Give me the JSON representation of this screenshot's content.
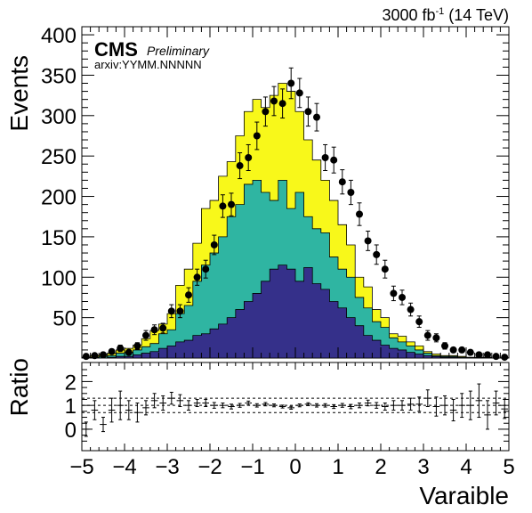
{
  "header": {
    "lumi_main": "3000 fb",
    "lumi_exp": "-1",
    "lumi_energy": " (14 TeV)"
  },
  "cms_label": {
    "cms": "CMS",
    "preliminary": "Preliminary",
    "arxiv": "arxiv:YYMM.NNNNN"
  },
  "chart_data": [
    {
      "type": "area",
      "subtype": "stacked_histogram_with_data_points",
      "xlim": [
        -5,
        5
      ],
      "ylim": [
        0,
        410
      ],
      "ylabel": "Events",
      "y_ticks": [
        50,
        100,
        150,
        200,
        250,
        300,
        350,
        400
      ],
      "bin_edges_start": -5,
      "bin_width": 0.2,
      "colors": {
        "bottom": "#35308a",
        "middle": "#2fb5a2",
        "top": "#f8f81a",
        "data": "#000000"
      },
      "stack_bottom": [
        0,
        0,
        0,
        1,
        2,
        2,
        4,
        6,
        8,
        12,
        15,
        20,
        22,
        28,
        30,
        36,
        42,
        50,
        60,
        70,
        80,
        95,
        110,
        115,
        110,
        95,
        112,
        92,
        85,
        70,
        62,
        50,
        40,
        28,
        22,
        16,
        12,
        10,
        7,
        5,
        3,
        2,
        1,
        1,
        0,
        0,
        0,
        0,
        0,
        0
      ],
      "stack_middle_cumulative": [
        0,
        1,
        2,
        3,
        6,
        7,
        10,
        14,
        18,
        30,
        35,
        55,
        65,
        95,
        115,
        130,
        150,
        175,
        190,
        215,
        220,
        205,
        195,
        220,
        185,
        205,
        175,
        160,
        155,
        125,
        110,
        100,
        75,
        62,
        45,
        38,
        25,
        20,
        15,
        10,
        6,
        3,
        2,
        2,
        1,
        0,
        0,
        0,
        0,
        0
      ],
      "stack_top_cumulative": [
        1,
        3,
        4,
        6,
        10,
        12,
        16,
        24,
        34,
        42,
        55,
        90,
        110,
        142,
        185,
        195,
        225,
        243,
        275,
        305,
        320,
        310,
        325,
        340,
        330,
        305,
        270,
        245,
        220,
        195,
        165,
        140,
        100,
        88,
        60,
        50,
        30,
        27,
        20,
        15,
        8,
        5,
        3,
        3,
        2,
        1,
        1,
        1,
        0,
        0
      ],
      "data_values": [
        2,
        3,
        4,
        8,
        12,
        7,
        15,
        28,
        35,
        37,
        58,
        58,
        78,
        100,
        110,
        140,
        188,
        190,
        238,
        248,
        275,
        305,
        318,
        315,
        340,
        328,
        305,
        298,
        248,
        245,
        218,
        205,
        178,
        145,
        128,
        110,
        80,
        75,
        60,
        45,
        28,
        25,
        15,
        10,
        10,
        7,
        4,
        4,
        2,
        1
      ],
      "data_errors": [
        2,
        2,
        2,
        3,
        4,
        3,
        4,
        6,
        6,
        6,
        8,
        8,
        9,
        10,
        11,
        12,
        14,
        14,
        16,
        16,
        17,
        18,
        18,
        18,
        19,
        18,
        18,
        17,
        16,
        16,
        15,
        15,
        14,
        12,
        12,
        11,
        9,
        9,
        8,
        7,
        6,
        5,
        4,
        3,
        3,
        3,
        2,
        2,
        2,
        1
      ]
    },
    {
      "type": "scatter",
      "subtype": "ratio_panel",
      "xlim": [
        -5,
        5
      ],
      "ylim": [
        -0.9,
        2.8
      ],
      "xlabel": "Varaible",
      "ylabel": "Ratio",
      "x_ticks": [
        -5,
        -4,
        -3,
        -2,
        -1,
        0,
        1,
        2,
        3,
        4,
        5
      ],
      "y_ticks": [
        0,
        1,
        2
      ],
      "reference_lines": [
        1.3,
        1.0,
        0.7
      ],
      "ratio_values": [
        0,
        0.8,
        0.2,
        0.8,
        1.0,
        0.8,
        0.7,
        0.9,
        1.2,
        1.1,
        1.3,
        1.2,
        1.0,
        1.1,
        1.1,
        1.0,
        1.0,
        0.95,
        1.0,
        1.1,
        1.0,
        1.05,
        1.0,
        0.95,
        0.9,
        1.0,
        1.05,
        1.0,
        1.0,
        0.95,
        1.0,
        0.95,
        1.0,
        1.1,
        1.0,
        0.95,
        1.0,
        1.0,
        1.05,
        1.05,
        1.3,
        0.95,
        1.0,
        0.8,
        1.0,
        1.0,
        1.2,
        0.6,
        1.1,
        0.85
      ],
      "ratio_errors": [
        0.3,
        0.4,
        0.3,
        0.5,
        0.6,
        0.4,
        0.4,
        0.3,
        0.3,
        0.3,
        0.25,
        0.25,
        0.2,
        0.15,
        0.15,
        0.12,
        0.1,
        0.1,
        0.08,
        0.08,
        0.07,
        0.07,
        0.06,
        0.06,
        0.06,
        0.06,
        0.06,
        0.07,
        0.07,
        0.08,
        0.08,
        0.09,
        0.1,
        0.12,
        0.12,
        0.15,
        0.2,
        0.2,
        0.25,
        0.3,
        0.35,
        0.4,
        0.4,
        0.45,
        0.5,
        0.6,
        0.7,
        0.6,
        0.5,
        0.4
      ]
    }
  ]
}
